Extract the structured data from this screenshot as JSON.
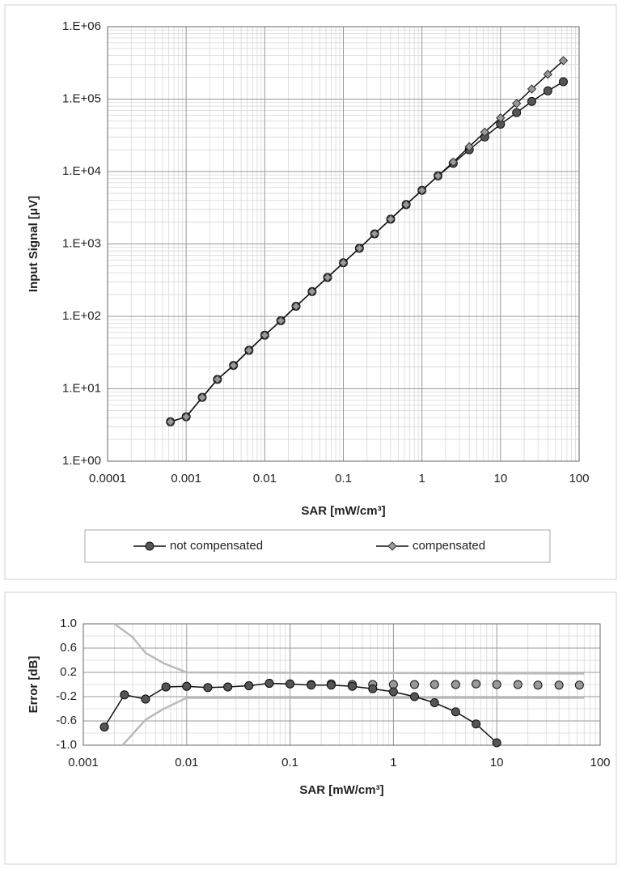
{
  "chart_data": [
    {
      "type": "line",
      "xlabel": "SAR [mW/cm³]",
      "ylabel": "Input Signal [μV]",
      "xscale": "log",
      "yscale": "log",
      "grid": true,
      "legend": "bottom",
      "xlim": [
        0.0001,
        100
      ],
      "ylim": [
        1,
        1000000
      ],
      "xticks": [
        0.0001,
        0.001,
        0.01,
        0.1,
        1,
        10,
        100
      ],
      "yticks": [
        {
          "value": 1,
          "label": "1.E+00"
        },
        {
          "value": 10,
          "label": "1.E+01"
        },
        {
          "value": 100,
          "label": "1.E+02"
        },
        {
          "value": 1000,
          "label": "1.E+03"
        },
        {
          "value": 10000,
          "label": "1.E+04"
        },
        {
          "value": 100000,
          "label": "1.E+05"
        },
        {
          "value": 1000000,
          "label": "1.E+06"
        }
      ],
      "x": [
        0.00063,
        0.001,
        0.0016,
        0.0025,
        0.004,
        0.0063,
        0.01,
        0.016,
        0.025,
        0.04,
        0.063,
        0.1,
        0.16,
        0.25,
        0.4,
        0.63,
        1,
        1.6,
        2.5,
        4,
        6.3,
        10,
        16,
        25,
        40,
        63
      ],
      "series": [
        {
          "name": "not compensated",
          "color": "#555555",
          "marker": "circle",
          "values": [
            3.5,
            4.1,
            7.6,
            13.5,
            21,
            34,
            55,
            87,
            138,
            220,
            345,
            550,
            870,
            1380,
            2200,
            3500,
            5500,
            8700,
            13000,
            20000,
            30000,
            45000,
            65000,
            93000,
            130000,
            174000
          ]
        },
        {
          "name": "compensated",
          "color": "#999999",
          "marker": "diamond",
          "values": [
            3.5,
            4.1,
            7.6,
            13.5,
            21,
            34,
            55,
            87,
            138,
            220,
            345,
            550,
            870,
            1380,
            2200,
            3500,
            5500,
            8700,
            13500,
            22000,
            35000,
            55000,
            87000,
            138000,
            220000,
            340000
          ]
        }
      ]
    },
    {
      "type": "line",
      "xlabel": "SAR [mW/cm³]",
      "ylabel": "Error [dB]",
      "xscale": "log",
      "yscale": "linear",
      "grid": true,
      "xlim": [
        0.001,
        100
      ],
      "ylim": [
        -1,
        1
      ],
      "xticks": [
        0.001,
        0.01,
        0.1,
        1,
        10,
        100
      ],
      "yticks": [
        {
          "value": 1,
          "label": "1.0"
        },
        0.6,
        0.2,
        -0.2,
        -0.6,
        {
          "value": -1,
          "label": "-1.0"
        }
      ],
      "x": [
        0.0016,
        0.0025,
        0.004,
        0.0063,
        0.01,
        0.016,
        0.025,
        0.04,
        0.063,
        0.1,
        0.16,
        0.25,
        0.4,
        0.63,
        1,
        1.6,
        2.5,
        4,
        6.3,
        10,
        16,
        25,
        40,
        63
      ],
      "series": [
        {
          "color": "#bbbbbb",
          "marker": "none",
          "x": [
            0.002,
            0.003,
            0.004,
            0.006,
            0.01,
            70
          ],
          "values": [
            1.0,
            0.78,
            0.52,
            0.35,
            0.2,
            0.18
          ]
        },
        {
          "color": "#bbbbbb",
          "marker": "none",
          "x": [
            0.0024,
            0.004,
            0.006,
            0.01,
            70
          ],
          "values": [
            -1.0,
            -0.58,
            -0.4,
            -0.22,
            -0.22
          ]
        },
        {
          "color": "#999999",
          "marker": "circle",
          "line": false,
          "values": [
            -0.7,
            -0.17,
            -0.24,
            -0.04,
            -0.03,
            -0.05,
            -0.04,
            -0.02,
            0.02,
            0.01,
            0.0,
            0.01,
            0.0,
            0.0,
            0.0,
            0.0,
            0.0,
            0.0,
            0.01,
            0.0,
            0.0,
            -0.01,
            -0.01,
            -0.01
          ]
        },
        {
          "color": "#555555",
          "marker": "circle",
          "values": [
            -0.7,
            -0.17,
            -0.24,
            -0.04,
            -0.03,
            -0.05,
            -0.04,
            -0.02,
            0.02,
            0.01,
            -0.01,
            -0.01,
            -0.03,
            -0.07,
            -0.12,
            -0.2,
            -0.3,
            -0.45,
            -0.65,
            -0.96,
            null,
            null,
            null,
            null
          ]
        }
      ]
    }
  ]
}
